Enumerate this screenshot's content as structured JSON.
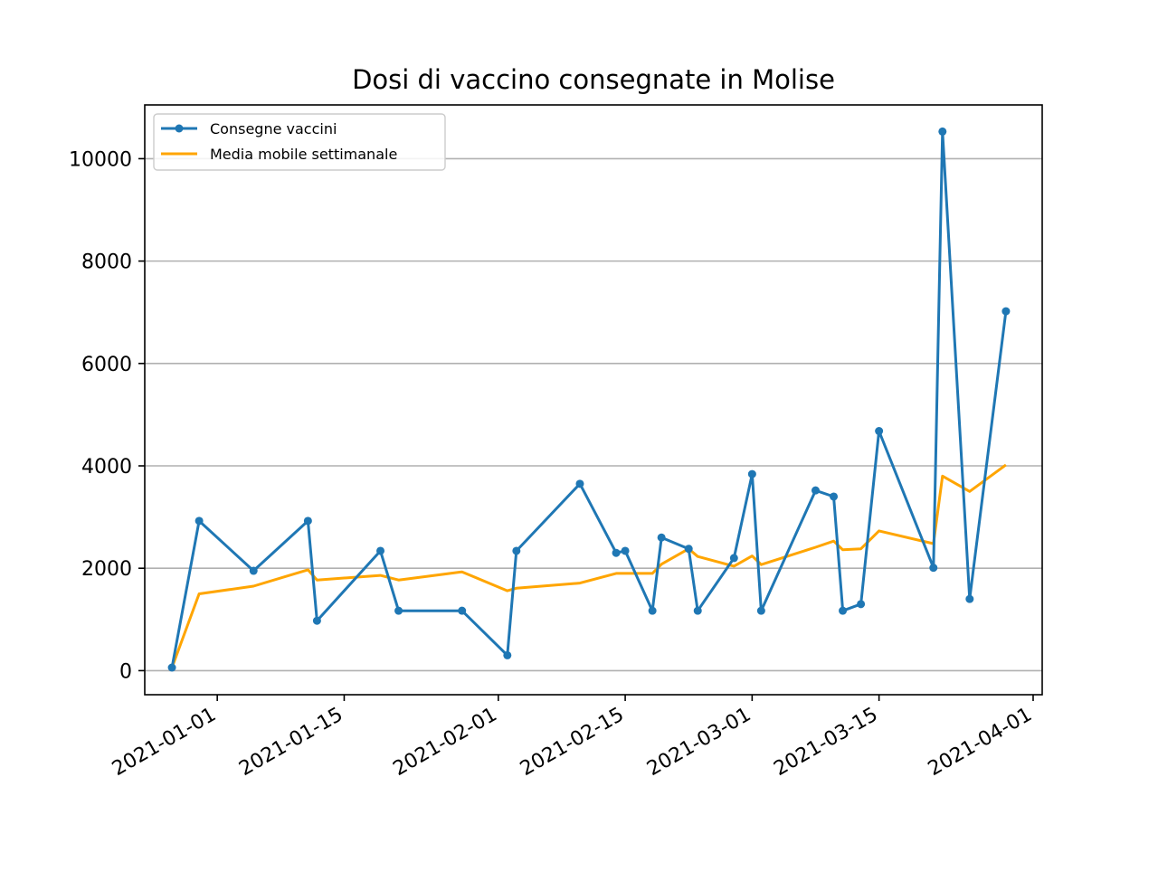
{
  "chart_data": {
    "type": "line",
    "title": "Dosi di vaccino consegnate in Molise",
    "xlabel": "",
    "ylabel": "",
    "x_type": "date",
    "xlim": [
      "2020-12-24",
      "2021-04-02"
    ],
    "ylim": [
      -470,
      11050
    ],
    "grid": "y",
    "legend": "top-left",
    "x_ticks": [
      "2021-01-01",
      "2021-01-15",
      "2021-02-01",
      "2021-02-15",
      "2021-03-01",
      "2021-03-15",
      "2021-04-01"
    ],
    "y_ticks": [
      0,
      2000,
      4000,
      6000,
      8000,
      10000
    ],
    "series": [
      {
        "name": "Consegne vaccini",
        "color": "#1f77b4",
        "marker": "circle",
        "points": [
          {
            "x": "2020-12-27",
            "y": 60
          },
          {
            "x": "2020-12-30",
            "y": 2925
          },
          {
            "x": "2021-01-05",
            "y": 1950
          },
          {
            "x": "2021-01-11",
            "y": 2925
          },
          {
            "x": "2021-01-12",
            "y": 975
          },
          {
            "x": "2021-01-19",
            "y": 2340
          },
          {
            "x": "2021-01-21",
            "y": 1170
          },
          {
            "x": "2021-01-28",
            "y": 1170
          },
          {
            "x": "2021-02-02",
            "y": 300
          },
          {
            "x": "2021-02-03",
            "y": 2340
          },
          {
            "x": "2021-02-10",
            "y": 3650
          },
          {
            "x": "2021-02-14",
            "y": 2300
          },
          {
            "x": "2021-02-15",
            "y": 2340
          },
          {
            "x": "2021-02-18",
            "y": 1170
          },
          {
            "x": "2021-02-19",
            "y": 2600
          },
          {
            "x": "2021-02-22",
            "y": 2380
          },
          {
            "x": "2021-02-23",
            "y": 1170
          },
          {
            "x": "2021-02-27",
            "y": 2200
          },
          {
            "x": "2021-03-01",
            "y": 3840
          },
          {
            "x": "2021-03-02",
            "y": 1170
          },
          {
            "x": "2021-03-08",
            "y": 3520
          },
          {
            "x": "2021-03-10",
            "y": 3400
          },
          {
            "x": "2021-03-11",
            "y": 1170
          },
          {
            "x": "2021-03-13",
            "y": 1300
          },
          {
            "x": "2021-03-15",
            "y": 4680
          },
          {
            "x": "2021-03-21",
            "y": 2010
          },
          {
            "x": "2021-03-22",
            "y": 10530
          },
          {
            "x": "2021-03-25",
            "y": 1400
          },
          {
            "x": "2021-03-29",
            "y": 7020
          }
        ]
      },
      {
        "name": "Media mobile settimanale",
        "color": "#ffa500",
        "marker": "none",
        "points": [
          {
            "x": "2020-12-27",
            "y": 60
          },
          {
            "x": "2020-12-30",
            "y": 1500
          },
          {
            "x": "2021-01-05",
            "y": 1650
          },
          {
            "x": "2021-01-11",
            "y": 1970
          },
          {
            "x": "2021-01-12",
            "y": 1770
          },
          {
            "x": "2021-01-19",
            "y": 1860
          },
          {
            "x": "2021-01-21",
            "y": 1770
          },
          {
            "x": "2021-01-28",
            "y": 1930
          },
          {
            "x": "2021-02-02",
            "y": 1560
          },
          {
            "x": "2021-02-03",
            "y": 1610
          },
          {
            "x": "2021-02-10",
            "y": 1710
          },
          {
            "x": "2021-02-14",
            "y": 1900
          },
          {
            "x": "2021-02-15",
            "y": 1900
          },
          {
            "x": "2021-02-18",
            "y": 1900
          },
          {
            "x": "2021-02-19",
            "y": 2080
          },
          {
            "x": "2021-02-22",
            "y": 2380
          },
          {
            "x": "2021-02-23",
            "y": 2230
          },
          {
            "x": "2021-02-27",
            "y": 2040
          },
          {
            "x": "2021-03-01",
            "y": 2240
          },
          {
            "x": "2021-03-02",
            "y": 2070
          },
          {
            "x": "2021-03-08",
            "y": 2410
          },
          {
            "x": "2021-03-10",
            "y": 2530
          },
          {
            "x": "2021-03-11",
            "y": 2360
          },
          {
            "x": "2021-03-13",
            "y": 2380
          },
          {
            "x": "2021-03-15",
            "y": 2730
          },
          {
            "x": "2021-03-21",
            "y": 2480
          },
          {
            "x": "2021-03-22",
            "y": 3800
          },
          {
            "x": "2021-03-25",
            "y": 3500
          },
          {
            "x": "2021-03-29",
            "y": 4020
          }
        ]
      }
    ]
  }
}
